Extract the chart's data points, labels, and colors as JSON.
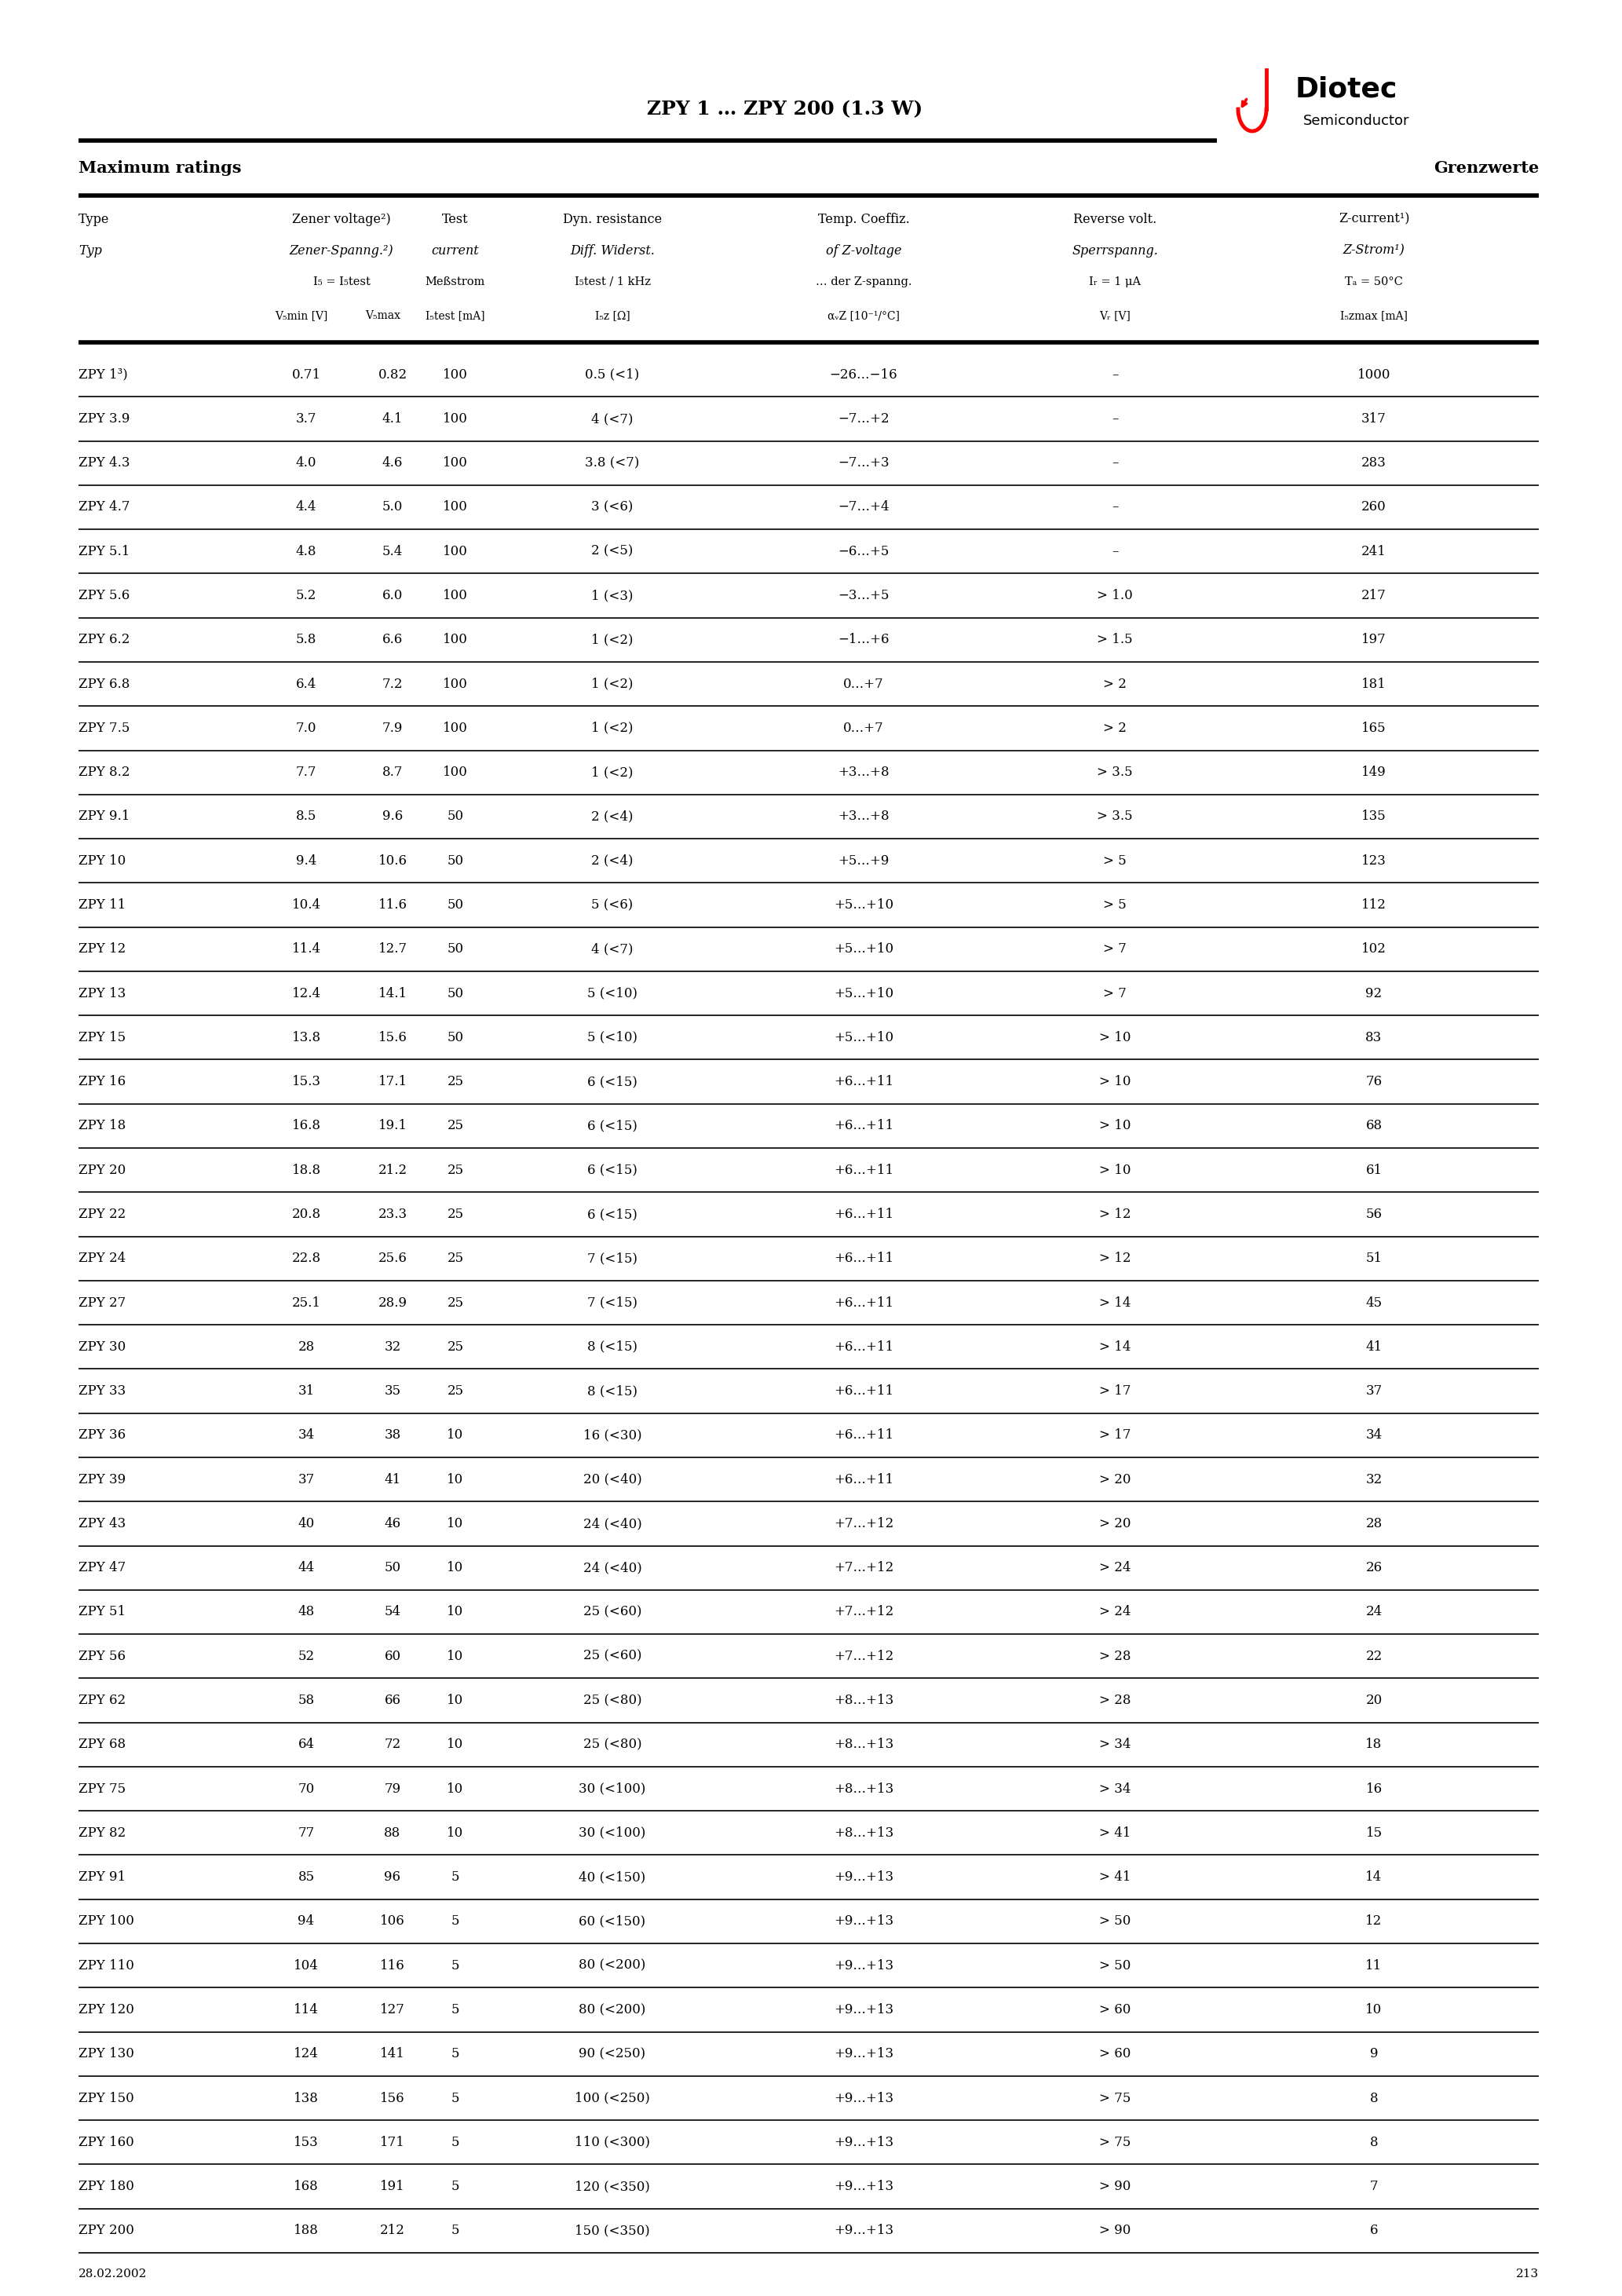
{
  "title": "ZPY 1 … ZPY 200 (1.3 W)",
  "left_heading": "Maximum ratings",
  "right_heading": "Grenzwerte",
  "date": "28.02.2002",
  "page": "213",
  "rows": [
    [
      "ZPY 1³)",
      "0.71",
      "0.82",
      "100",
      "0.5 (<1)",
      "−26…−16",
      "–",
      "1000"
    ],
    [
      "ZPY 3.9",
      "3.7",
      "4.1",
      "100",
      "4 (<7)",
      "−7…+2",
      "–",
      "317"
    ],
    [
      "ZPY 4.3",
      "4.0",
      "4.6",
      "100",
      "3.8 (<7)",
      "−7…+3",
      "–",
      "283"
    ],
    [
      "ZPY 4.7",
      "4.4",
      "5.0",
      "100",
      "3 (<6)",
      "−7…+4",
      "–",
      "260"
    ],
    [
      "ZPY 5.1",
      "4.8",
      "5.4",
      "100",
      "2 (<5)",
      "−6…+5",
      "–",
      "241"
    ],
    [
      "ZPY 5.6",
      "5.2",
      "6.0",
      "100",
      "1 (<3)",
      "−3…+5",
      "> 1.0",
      "217"
    ],
    [
      "ZPY 6.2",
      "5.8",
      "6.6",
      "100",
      "1 (<2)",
      "−1…+6",
      "> 1.5",
      "197"
    ],
    [
      "ZPY 6.8",
      "6.4",
      "7.2",
      "100",
      "1 (<2)",
      "0…+7",
      "> 2",
      "181"
    ],
    [
      "ZPY 7.5",
      "7.0",
      "7.9",
      "100",
      "1 (<2)",
      "0…+7",
      "> 2",
      "165"
    ],
    [
      "ZPY 8.2",
      "7.7",
      "8.7",
      "100",
      "1 (<2)",
      "+3…+8",
      "> 3.5",
      "149"
    ],
    [
      "ZPY 9.1",
      "8.5",
      "9.6",
      "50",
      "2 (<4)",
      "+3…+8",
      "> 3.5",
      "135"
    ],
    [
      "ZPY 10",
      "9.4",
      "10.6",
      "50",
      "2 (<4)",
      "+5…+9",
      "> 5",
      "123"
    ],
    [
      "ZPY 11",
      "10.4",
      "11.6",
      "50",
      "5 (<6)",
      "+5…+10",
      "> 5",
      "112"
    ],
    [
      "ZPY 12",
      "11.4",
      "12.7",
      "50",
      "4 (<7)",
      "+5…+10",
      "> 7",
      "102"
    ],
    [
      "ZPY 13",
      "12.4",
      "14.1",
      "50",
      "5 (<10)",
      "+5…+10",
      "> 7",
      "92"
    ],
    [
      "ZPY 15",
      "13.8",
      "15.6",
      "50",
      "5 (<10)",
      "+5…+10",
      "> 10",
      "83"
    ],
    [
      "ZPY 16",
      "15.3",
      "17.1",
      "25",
      "6 (<15)",
      "+6…+11",
      "> 10",
      "76"
    ],
    [
      "ZPY 18",
      "16.8",
      "19.1",
      "25",
      "6 (<15)",
      "+6…+11",
      "> 10",
      "68"
    ],
    [
      "ZPY 20",
      "18.8",
      "21.2",
      "25",
      "6 (<15)",
      "+6…+11",
      "> 10",
      "61"
    ],
    [
      "ZPY 22",
      "20.8",
      "23.3",
      "25",
      "6 (<15)",
      "+6…+11",
      "> 12",
      "56"
    ],
    [
      "ZPY 24",
      "22.8",
      "25.6",
      "25",
      "7 (<15)",
      "+6…+11",
      "> 12",
      "51"
    ],
    [
      "ZPY 27",
      "25.1",
      "28.9",
      "25",
      "7 (<15)",
      "+6…+11",
      "> 14",
      "45"
    ],
    [
      "ZPY 30",
      "28",
      "32",
      "25",
      "8 (<15)",
      "+6…+11",
      "> 14",
      "41"
    ],
    [
      "ZPY 33",
      "31",
      "35",
      "25",
      "8 (<15)",
      "+6…+11",
      "> 17",
      "37"
    ],
    [
      "ZPY 36",
      "34",
      "38",
      "10",
      "16 (<30)",
      "+6…+11",
      "> 17",
      "34"
    ],
    [
      "ZPY 39",
      "37",
      "41",
      "10",
      "20 (<40)",
      "+6…+11",
      "> 20",
      "32"
    ],
    [
      "ZPY 43",
      "40",
      "46",
      "10",
      "24 (<40)",
      "+7…+12",
      "> 20",
      "28"
    ],
    [
      "ZPY 47",
      "44",
      "50",
      "10",
      "24 (<40)",
      "+7…+12",
      "> 24",
      "26"
    ],
    [
      "ZPY 51",
      "48",
      "54",
      "10",
      "25 (<60)",
      "+7…+12",
      "> 24",
      "24"
    ],
    [
      "ZPY 56",
      "52",
      "60",
      "10",
      "25 (<60)",
      "+7…+12",
      "> 28",
      "22"
    ],
    [
      "ZPY 62",
      "58",
      "66",
      "10",
      "25 (<80)",
      "+8…+13",
      "> 28",
      "20"
    ],
    [
      "ZPY 68",
      "64",
      "72",
      "10",
      "25 (<80)",
      "+8…+13",
      "> 34",
      "18"
    ],
    [
      "ZPY 75",
      "70",
      "79",
      "10",
      "30 (<100)",
      "+8…+13",
      "> 34",
      "16"
    ],
    [
      "ZPY 82",
      "77",
      "88",
      "10",
      "30 (<100)",
      "+8…+13",
      "> 41",
      "15"
    ],
    [
      "ZPY 91",
      "85",
      "96",
      "5",
      "40 (<150)",
      "+9…+13",
      "> 41",
      "14"
    ],
    [
      "ZPY 100",
      "94",
      "106",
      "5",
      "60 (<150)",
      "+9…+13",
      "> 50",
      "12"
    ],
    [
      "ZPY 110",
      "104",
      "116",
      "5",
      "80 (<200)",
      "+9…+13",
      "> 50",
      "11"
    ],
    [
      "ZPY 120",
      "114",
      "127",
      "5",
      "80 (<200)",
      "+9…+13",
      "> 60",
      "10"
    ],
    [
      "ZPY 130",
      "124",
      "141",
      "5",
      "90 (<250)",
      "+9…+13",
      "> 60",
      "9"
    ],
    [
      "ZPY 150",
      "138",
      "156",
      "5",
      "100 (<250)",
      "+9…+13",
      "> 75",
      "8"
    ],
    [
      "ZPY 160",
      "153",
      "171",
      "5",
      "110 (<300)",
      "+9…+13",
      "> 75",
      "8"
    ],
    [
      "ZPY 180",
      "168",
      "191",
      "5",
      "120 (<350)",
      "+9…+13",
      "> 90",
      "7"
    ],
    [
      "ZPY 200",
      "188",
      "212",
      "5",
      "150 (<350)",
      "+9…+13",
      "> 90",
      "6"
    ]
  ],
  "background_color": "#ffffff"
}
